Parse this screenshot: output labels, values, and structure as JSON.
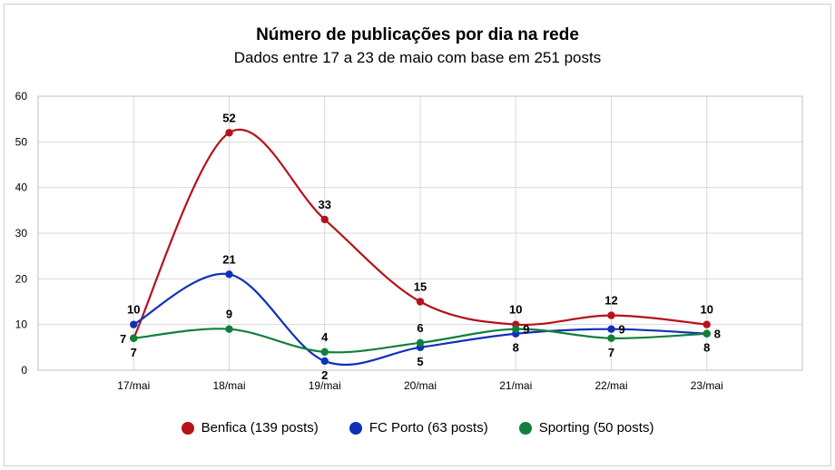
{
  "chart_data": {
    "type": "line",
    "title": "Número de publicações por dia na rede",
    "subtitle": "Dados entre 17 a 23 de maio com base em 251 posts",
    "categories": [
      "17/mai",
      "18/mai",
      "19/mai",
      "20/mai",
      "21/mai",
      "22/mai",
      "23/mai"
    ],
    "ylim": [
      0,
      60
    ],
    "yticks": [
      0,
      10,
      20,
      30,
      40,
      50,
      60
    ],
    "grid": true,
    "legend_position": "bottom",
    "series": [
      {
        "name": "Benfica (139 posts)",
        "color": "#b5121b",
        "values": [
          7,
          52,
          33,
          15,
          10,
          12,
          10
        ]
      },
      {
        "name": "FC Porto (63 posts)",
        "color": "#1030b8",
        "values": [
          10,
          21,
          2,
          5,
          8,
          9,
          8
        ]
      },
      {
        "name": "Sporting (50 posts)",
        "color": "#10803c",
        "values": [
          7,
          9,
          4,
          6,
          9,
          7,
          8
        ]
      }
    ]
  }
}
